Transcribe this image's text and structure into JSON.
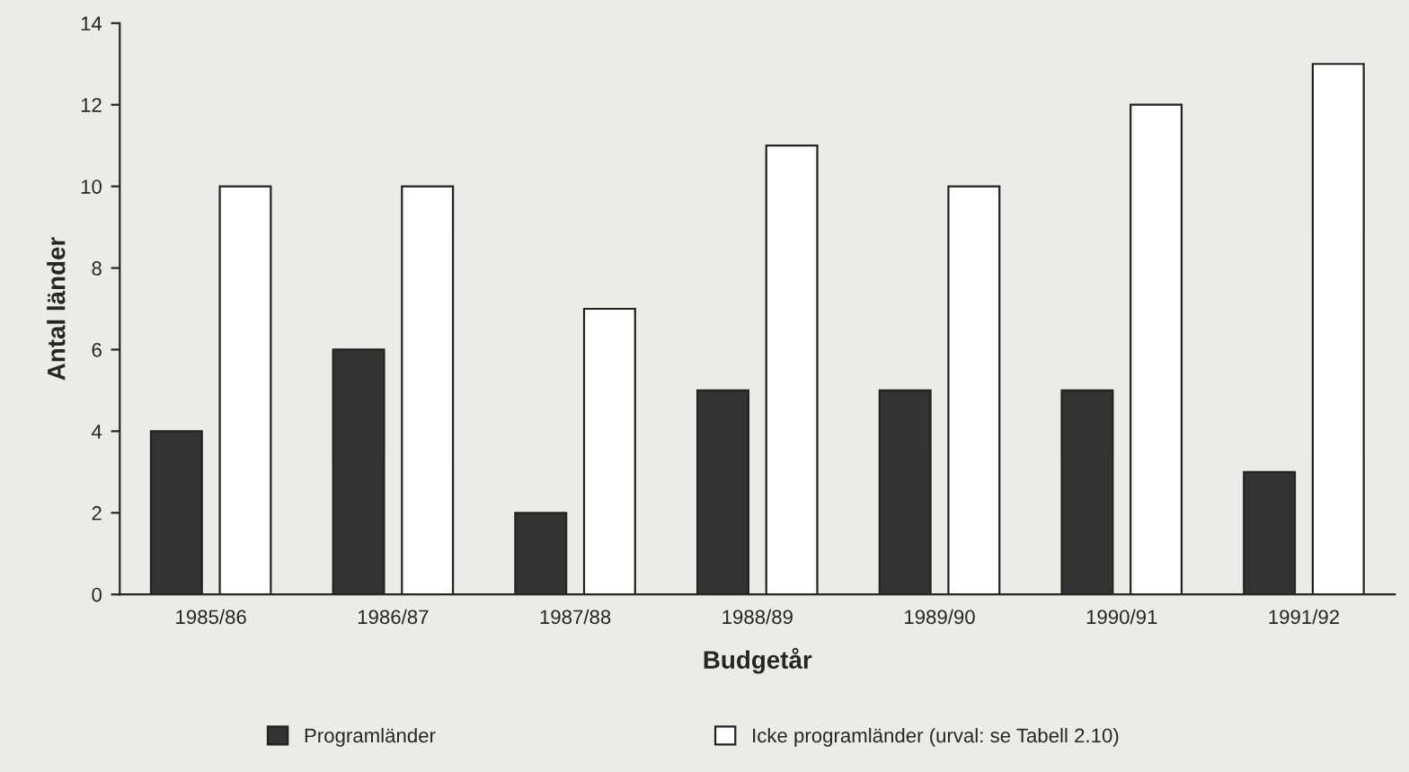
{
  "chart_data": {
    "type": "bar",
    "xlabel": "Budgetår",
    "ylabel": "Antal länder",
    "categories": [
      "1985/86",
      "1986/87",
      "1987/88",
      "1988/89",
      "1989/90",
      "1990/91",
      "1991/92"
    ],
    "series": [
      {
        "name": "Programländer",
        "color": "#333333",
        "values": [
          4,
          6,
          2,
          5,
          5,
          5,
          3
        ]
      },
      {
        "name": "Icke programländer (urval: se Tabell 2.10)",
        "color": "#ffffff",
        "values": [
          10,
          10,
          7,
          11,
          10,
          12,
          13
        ]
      }
    ],
    "ylim": [
      0,
      14
    ],
    "yticks": [
      0,
      2,
      4,
      6,
      8,
      10,
      12,
      14
    ],
    "grid": false,
    "legend": "bottom"
  }
}
